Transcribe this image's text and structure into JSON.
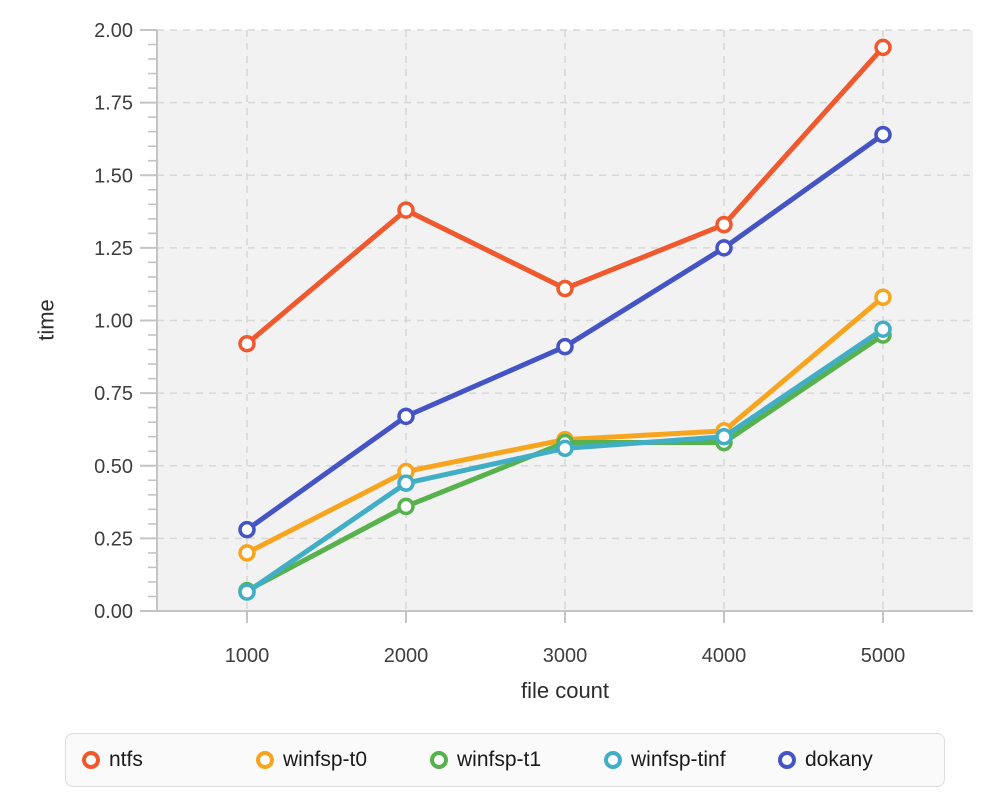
{
  "chart_data": {
    "type": "line",
    "title": "",
    "xlabel": "file count",
    "ylabel": "time",
    "x": [
      1000,
      2000,
      3000,
      4000,
      5000
    ],
    "x_tick_labels": [
      "1000",
      "2000",
      "3000",
      "4000",
      "5000"
    ],
    "y_tick_labels": [
      "0.00",
      "0.25",
      "0.50",
      "0.75",
      "1.00",
      "1.25",
      "1.50",
      "1.75",
      "2.00"
    ],
    "ylim": [
      0,
      2.0
    ],
    "minor_tick_step": 0.05,
    "grid": "dashed",
    "plot_bg": "#f2f2f2",
    "grid_color": "#d8d8d8",
    "axis_color": "#c4c4c4",
    "legend_position": "bottom",
    "marker": "open-circle",
    "series": [
      {
        "name": "ntfs",
        "color": "#f0592e",
        "values": [
          0.92,
          1.38,
          1.11,
          1.33,
          1.94
        ]
      },
      {
        "name": "winfsp-t0",
        "color": "#f7a51f",
        "values": [
          0.2,
          0.48,
          0.59,
          0.62,
          1.08
        ]
      },
      {
        "name": "winfsp-t1",
        "color": "#57b14c",
        "values": [
          0.07,
          0.36,
          0.58,
          0.58,
          0.95
        ]
      },
      {
        "name": "winfsp-tinf",
        "color": "#41aec6",
        "values": [
          0.065,
          0.44,
          0.56,
          0.6,
          0.97
        ]
      },
      {
        "name": "dokany",
        "color": "#4454c4",
        "values": [
          0.28,
          0.67,
          0.91,
          1.25,
          1.64
        ]
      }
    ]
  }
}
